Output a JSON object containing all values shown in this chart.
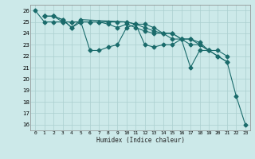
{
  "title": "",
  "xlabel": "Humidex (Indice chaleur)",
  "xlim": [
    -0.5,
    23.5
  ],
  "ylim": [
    15.5,
    26.5
  ],
  "yticks": [
    16,
    17,
    18,
    19,
    20,
    21,
    22,
    23,
    24,
    25,
    26
  ],
  "xticks": [
    0,
    1,
    2,
    3,
    4,
    5,
    6,
    7,
    8,
    9,
    10,
    11,
    12,
    13,
    14,
    15,
    16,
    17,
    18,
    19,
    20,
    21,
    22,
    23
  ],
  "background_color": "#cce9e9",
  "grid_color": "#aacfcf",
  "line_color": "#1a6b6b",
  "lines": [
    {
      "x": [
        0,
        1,
        2,
        3,
        4,
        5,
        6,
        7,
        8,
        9,
        10,
        11,
        12,
        13,
        14,
        15,
        16,
        17,
        18,
        19,
        20,
        21,
        22,
        23
      ],
      "y": [
        26.0,
        25.0,
        25.0,
        25.0,
        25.0,
        25.0,
        25.0,
        25.0,
        25.0,
        25.0,
        25.0,
        24.8,
        24.8,
        24.5,
        24.0,
        23.5,
        23.5,
        23.0,
        23.0,
        22.5,
        22.0,
        21.5,
        18.5,
        16.0
      ]
    },
    {
      "x": [
        1,
        2,
        3,
        4,
        5,
        6,
        7,
        8,
        9,
        10,
        11,
        12,
        13,
        14,
        15,
        16,
        17,
        18,
        19,
        20,
        21
      ],
      "y": [
        25.5,
        25.5,
        25.2,
        24.5,
        25.0,
        22.5,
        22.5,
        22.8,
        23.0,
        24.5,
        24.8,
        23.0,
        22.8,
        23.0,
        23.0,
        23.5,
        21.0,
        22.5,
        22.5,
        22.0,
        21.5
      ]
    },
    {
      "x": [
        1,
        2,
        3,
        4,
        5,
        10,
        11,
        12,
        13,
        14,
        15,
        16,
        17,
        18,
        19
      ],
      "y": [
        25.5,
        25.5,
        25.2,
        24.5,
        25.2,
        25.0,
        24.8,
        24.5,
        24.2,
        24.0,
        24.0,
        23.5,
        23.5,
        23.2,
        22.5
      ]
    },
    {
      "x": [
        1,
        2,
        3,
        4,
        5,
        6,
        7,
        8,
        9,
        10,
        11,
        12,
        13,
        14,
        15,
        16,
        17,
        18,
        19,
        20,
        21
      ],
      "y": [
        25.5,
        25.5,
        25.0,
        25.0,
        25.0,
        25.0,
        25.0,
        24.8,
        24.5,
        24.8,
        24.5,
        24.2,
        24.0,
        24.0,
        24.0,
        23.5,
        23.5,
        23.0,
        22.5,
        22.5,
        22.0
      ]
    }
  ],
  "markersize": 2.5,
  "linewidth": 0.8
}
